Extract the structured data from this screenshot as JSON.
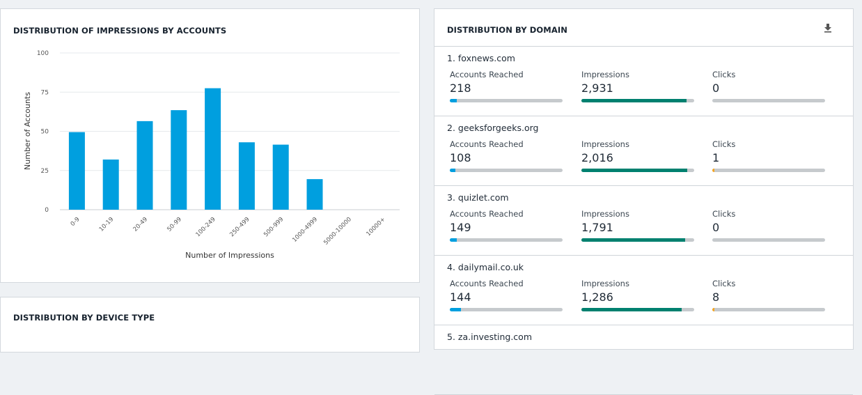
{
  "impressions_card": {
    "title": "DISTRIBUTION OF IMPRESSIONS BY ACCOUNTS"
  },
  "device_card": {
    "title": "DISTRIBUTION BY DEVICE TYPE"
  },
  "chart_data": {
    "type": "bar",
    "title": "DISTRIBUTION OF IMPRESSIONS BY ACCOUNTS",
    "xlabel": "Number of Impressions",
    "ylabel": "Number of Accounts",
    "categories": [
      "0-9",
      "10-19",
      "20-49",
      "50-99",
      "100-249",
      "250-499",
      "500-999",
      "1000-4999",
      "5000-10000",
      "10000+"
    ],
    "values": [
      49.5,
      32,
      56.5,
      63.5,
      77.5,
      43,
      41.5,
      19.5,
      0,
      0
    ],
    "ylim": [
      0,
      100
    ],
    "yticks": [
      0,
      25,
      50,
      75,
      100
    ],
    "grid": true,
    "color": "#009fdf"
  },
  "domain_card": {
    "title": "DISTRIBUTION BY DOMAIN",
    "download_icon": "download-icon",
    "labels": {
      "accounts": "Accounts Reached",
      "impressions": "Impressions",
      "clicks": "Clicks"
    },
    "colors": {
      "accounts": "#009fdf",
      "impressions": "#00806f",
      "clicks": "#f5a623",
      "track": "#c6cacd"
    },
    "rows": [
      {
        "name": "1. foxnews.com",
        "accounts": "218",
        "accounts_pct": 6,
        "impressions": "2,931",
        "impressions_pct": 93,
        "clicks": "0",
        "clicks_pct": 0
      },
      {
        "name": "2. geeksforgeeks.org",
        "accounts": "108",
        "accounts_pct": 5,
        "impressions": "2,016",
        "impressions_pct": 94,
        "clicks": "1",
        "clicks_pct": 2
      },
      {
        "name": "3. quizlet.com",
        "accounts": "149",
        "accounts_pct": 6,
        "impressions": "1,791",
        "impressions_pct": 92,
        "clicks": "0",
        "clicks_pct": 0
      },
      {
        "name": "4. dailymail.co.uk",
        "accounts": "144",
        "accounts_pct": 10,
        "impressions": "1,286",
        "impressions_pct": 89,
        "clicks": "8",
        "clicks_pct": 2
      },
      {
        "name": "5. za.investing.com"
      }
    ]
  }
}
